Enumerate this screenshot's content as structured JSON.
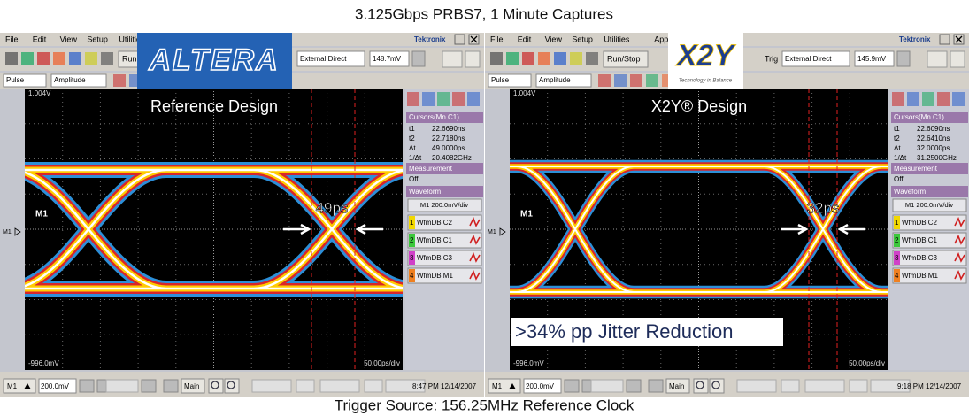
{
  "title": "3.125Gbps PRBS7, 1 Minute Captures",
  "footer": "Trigger Source: 156.25MHz Reference Clock",
  "panels": [
    {
      "menu": [
        "File",
        "Edit",
        "View",
        "Setup",
        "Utilities"
      ],
      "brand": "Tektronix",
      "logo": "ALTERA",
      "run": "Run",
      "trigger": "External Direct",
      "level": "148.7mV",
      "pulse": "Pulse",
      "amplitude": "Amplitude",
      "design": "Reference Design",
      "top_voltage": "1.004V",
      "bottom_voltage": "-996.0mV",
      "timebase": "50.00ps/div",
      "channel": "M1",
      "marker": "M1",
      "jitter": "49ps",
      "cursors": {
        "title": "Cursors(Mn C1)",
        "rows": [
          [
            "t1",
            "22.6690ns"
          ],
          [
            "t2",
            "22.7180ns"
          ],
          [
            "Δt",
            "49.0000ps"
          ],
          [
            "1/Δt",
            "20.4082GHz"
          ]
        ]
      },
      "measurement": {
        "title": "Measurement",
        "value": "Off"
      },
      "waveform": {
        "title": "Waveform",
        "scale": "M1 200.0mV/div",
        "items": [
          [
            "1",
            "WfmDB C2"
          ],
          [
            "2",
            "WfmDB C1"
          ],
          [
            "3",
            "WfmDB C3"
          ],
          [
            "4",
            "WfmDB M1"
          ]
        ]
      },
      "status": {
        "channel": "M1",
        "volts": "200.0mV",
        "main": "Main",
        "time": "8:47 PM 12/14/2007"
      }
    },
    {
      "menu": [
        "File",
        "Edit",
        "View",
        "Setup",
        "Utilities",
        "Applic"
      ],
      "brand": "Tektronix",
      "logo": "X2Y",
      "tagline": "Technology in Balance",
      "run": "Run/Stop",
      "trigger_label": "Trig",
      "trigger": "External Direct",
      "level": "145.9mV",
      "pulse": "Pulse",
      "amplitude": "Amplitude",
      "design": "X2Y® Design",
      "top_voltage": "1.004V",
      "bottom_voltage": "-996.0mV",
      "timebase": "50.00ps/div",
      "channel": "M1",
      "marker": "M1",
      "jitter": "32ps",
      "cursors": {
        "title": "Cursors(Mn C1)",
        "rows": [
          [
            "t1",
            "22.6090ns"
          ],
          [
            "t2",
            "22.6410ns"
          ],
          [
            "Δt",
            "32.0000ps"
          ],
          [
            "1/Δt",
            "31.2500GHz"
          ]
        ]
      },
      "measurement": {
        "title": "Measurement",
        "value": "Off"
      },
      "waveform": {
        "title": "Waveform",
        "scale": "M1 200.0mV/div",
        "items": [
          [
            "1",
            "WfmDB C2"
          ],
          [
            "2",
            "WfmDB C1"
          ],
          [
            "3",
            "WfmDB C3"
          ],
          [
            "4",
            "WfmDB M1"
          ]
        ]
      },
      "annotation": ">34% pp Jitter Reduction",
      "status": {
        "channel": "M1",
        "volts": "200.0mV",
        "main": "Main",
        "time": "9:18 PM 12/14/2007"
      }
    }
  ]
}
